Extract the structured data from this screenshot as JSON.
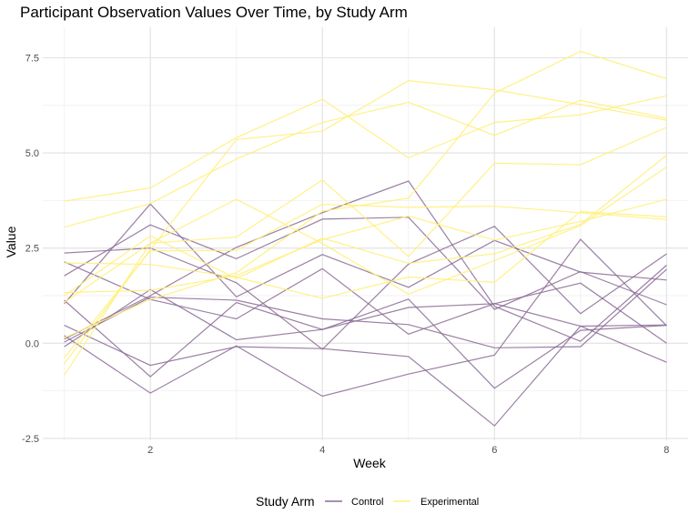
{
  "chart_data": {
    "type": "line",
    "title": "Participant Observation Values Over Time, by Study Arm",
    "xlabel": "Week",
    "ylabel": "Value",
    "xlim": [
      0.75,
      8.25
    ],
    "ylim": [
      -2.55,
      8.3
    ],
    "x_ticks": [
      2,
      4,
      6,
      8
    ],
    "x_ticks_minor": [
      1,
      3,
      5,
      7
    ],
    "y_ticks": [
      -2.5,
      0.0,
      2.5,
      5.0,
      7.5
    ],
    "y_tick_labels": [
      "-2.5",
      "0.0",
      "2.5",
      "5.0",
      "7.5"
    ],
    "y_ticks_minor": [
      -1.25,
      1.25,
      3.75,
      6.25
    ],
    "grid": true,
    "legend": {
      "title": "Study Arm",
      "position": "bottom",
      "entries": [
        "Control",
        "Experimental"
      ]
    },
    "colors": {
      "Control": "#8a6a94",
      "Experimental": "#fff07a"
    },
    "x": [
      1,
      2,
      3,
      4,
      5,
      6,
      7,
      8
    ],
    "series": [
      {
        "group": "Control",
        "values": [
          0.2,
          -1.31,
          -0.07,
          -1.39,
          -0.81,
          -0.31,
          2.73,
          0.46
        ]
      },
      {
        "group": "Control",
        "values": [
          1.13,
          -0.88,
          1.07,
          0.36,
          1.16,
          -1.18,
          0.34,
          0.47
        ]
      },
      {
        "group": "Control",
        "values": [
          1.77,
          3.11,
          2.22,
          3.26,
          3.31,
          0.89,
          1.88,
          1.01
        ]
      },
      {
        "group": "Control",
        "values": [
          1.04,
          3.66,
          1.22,
          2.33,
          1.47,
          2.7,
          1.87,
          1.66
        ]
      },
      {
        "group": "Control",
        "values": [
          0.47,
          -0.58,
          -0.09,
          -0.14,
          -0.35,
          -2.17,
          0.45,
          0.48
        ]
      },
      {
        "group": "Control",
        "values": [
          2.37,
          2.5,
          1.59,
          -0.16,
          2.08,
          3.07,
          0.78,
          2.35
        ]
      },
      {
        "group": "Control",
        "values": [
          0.03,
          1.21,
          1.13,
          0.64,
          0.49,
          -0.12,
          -0.09,
          1.94
        ]
      },
      {
        "group": "Control",
        "values": [
          -0.09,
          1.41,
          0.09,
          0.36,
          0.94,
          1.04,
          1.58,
          0.0
        ]
      },
      {
        "group": "Control",
        "values": [
          2.14,
          1.15,
          0.64,
          1.96,
          0.24,
          1.04,
          0.45,
          -0.5
        ]
      },
      {
        "group": "Control",
        "values": [
          0.11,
          1.25,
          2.52,
          3.43,
          4.26,
          0.97,
          0.05,
          2.05
        ]
      },
      {
        "group": "Experimental",
        "values": [
          3.05,
          3.67,
          4.84,
          5.8,
          6.33,
          5.46,
          6.38,
          5.91
        ]
      },
      {
        "group": "Experimental",
        "values": [
          3.73,
          4.08,
          5.4,
          6.41,
          4.87,
          5.8,
          6.0,
          6.5
        ]
      },
      {
        "group": "Experimental",
        "values": [
          1.33,
          1.39,
          1.78,
          2.72,
          3.34,
          2.71,
          3.2,
          3.78
        ]
      },
      {
        "group": "Experimental",
        "values": [
          -0.84,
          2.63,
          2.79,
          4.29,
          2.28,
          4.73,
          4.69,
          5.67
        ]
      },
      {
        "group": "Experimental",
        "values": [
          1.07,
          2.63,
          3.78,
          2.62,
          1.29,
          2.17,
          3.09,
          4.63
        ]
      },
      {
        "group": "Experimental",
        "values": [
          -0.54,
          2.46,
          5.35,
          5.57,
          6.9,
          6.66,
          6.27,
          5.86
        ]
      },
      {
        "group": "Experimental",
        "values": [
          0.14,
          1.15,
          1.85,
          3.47,
          3.81,
          6.57,
          7.67,
          6.95
        ]
      },
      {
        "group": "Experimental",
        "values": [
          2.11,
          2.07,
          1.73,
          1.18,
          1.74,
          1.6,
          3.46,
          3.32
        ]
      },
      {
        "group": "Experimental",
        "values": [
          1.25,
          2.82,
          1.7,
          2.76,
          2.1,
          2.35,
          3.12,
          4.94
        ]
      },
      {
        "group": "Experimental",
        "values": [
          -0.38,
          2.43,
          2.44,
          3.65,
          3.57,
          3.6,
          3.43,
          3.25
        ]
      }
    ]
  }
}
